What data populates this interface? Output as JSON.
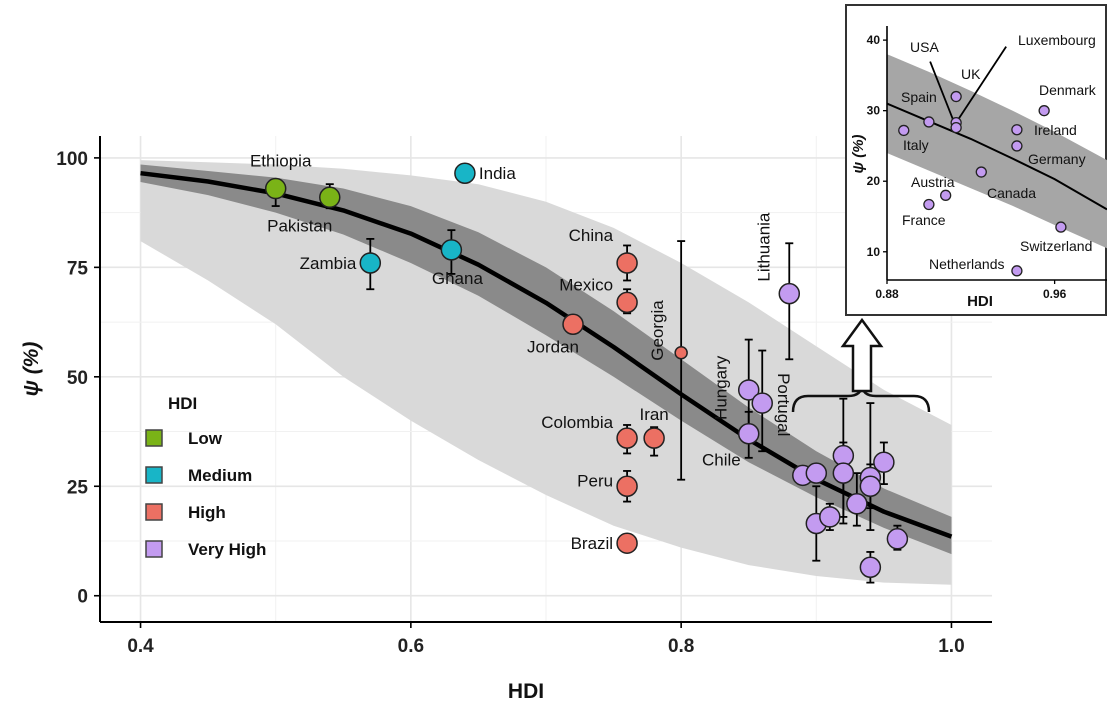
{
  "chart_data": [
    {
      "type": "scatter",
      "xlabel": "HDI",
      "ylabel": "ψ (%)",
      "xlim": [
        0.37,
        1.03
      ],
      "ylim": [
        -6,
        105
      ],
      "xticks": [
        0.4,
        0.6,
        0.8,
        1.0
      ],
      "xtick_labels": [
        "0.4",
        "0.6",
        "0.8",
        "1.0"
      ],
      "yticks": [
        0,
        25,
        50,
        75,
        100
      ],
      "ytick_labels": [
        "0",
        "25",
        "50",
        "75",
        "100"
      ],
      "grid": true,
      "legend": {
        "title": "HDI",
        "placement": "left-middle",
        "entries": [
          {
            "label": "Low",
            "color": "#7ab317"
          },
          {
            "label": "Medium",
            "color": "#18b5c7"
          },
          {
            "label": "High",
            "color": "#ec7063"
          },
          {
            "label": "Very High",
            "color": "#c39bf0"
          }
        ]
      },
      "fit_curve": {
        "x": [
          0.4,
          0.45,
          0.5,
          0.55,
          0.6,
          0.65,
          0.7,
          0.75,
          0.8,
          0.85,
          0.9,
          0.95,
          1.0
        ],
        "y": [
          96.5,
          94.6,
          91.9,
          88.0,
          82.7,
          75.6,
          66.9,
          56.8,
          46.0,
          35.7,
          26.6,
          19.2,
          13.5
        ],
        "band_inner_low": [
          94.5,
          91.5,
          87.5,
          82.5,
          76.0,
          68.5,
          59.5,
          50.0,
          40.0,
          30.5,
          22.5,
          15.5,
          9.5
        ],
        "band_inner_high": [
          98.5,
          97.0,
          95.5,
          93.0,
          89.0,
          83.0,
          75.0,
          65.0,
          54.0,
          43.0,
          33.0,
          24.5,
          18.0
        ],
        "band_outer_low": [
          81.0,
          72.0,
          62.0,
          50.0,
          40.0,
          31.0,
          23.0,
          16.0,
          11.0,
          7.0,
          4.5,
          3.0,
          2.5
        ],
        "band_outer_high": [
          99.5,
          99.0,
          98.5,
          97.5,
          96.0,
          94.0,
          90.0,
          84.0,
          76.0,
          67.0,
          57.0,
          47.0,
          39.0
        ]
      },
      "points": [
        {
          "label": "Ethiopia",
          "x": 0.5,
          "y": 93,
          "err": [
            89,
            95
          ],
          "group": "Low"
        },
        {
          "label": "Pakistan",
          "x": 0.54,
          "y": 91,
          "err": [
            88.5,
            94
          ],
          "group": "Low"
        },
        {
          "label": "Zambia",
          "x": 0.57,
          "y": 76,
          "err": [
            70,
            81.5
          ],
          "group": "Medium"
        },
        {
          "label": "Ghana",
          "x": 0.63,
          "y": 79,
          "err": [
            73.5,
            83.5
          ],
          "group": "Medium"
        },
        {
          "label": "India",
          "x": 0.64,
          "y": 96.5,
          "err": [
            95.5,
            97.5
          ],
          "group": "Medium"
        },
        {
          "label": "Jordan",
          "x": 0.72,
          "y": 62,
          "err": null,
          "group": "High"
        },
        {
          "label": "China",
          "x": 0.76,
          "y": 76,
          "err": [
            72,
            80
          ],
          "group": "High"
        },
        {
          "label": "Mexico",
          "x": 0.76,
          "y": 67,
          "err": [
            64.5,
            70
          ],
          "group": "High"
        },
        {
          "label": "Colombia",
          "x": 0.76,
          "y": 36,
          "err": [
            32.5,
            39
          ],
          "group": "High"
        },
        {
          "label": "Peru",
          "x": 0.76,
          "y": 25,
          "err": [
            21.5,
            28.5
          ],
          "group": "High"
        },
        {
          "label": "Brazil",
          "x": 0.76,
          "y": 12,
          "err": [
            10.5,
            14
          ],
          "group": "High"
        },
        {
          "label": "Iran",
          "x": 0.78,
          "y": 36,
          "err": [
            32,
            38.5
          ],
          "group": "High"
        },
        {
          "label": "Georgia",
          "x": 0.8,
          "y": 55.5,
          "err": [
            26.5,
            81
          ],
          "group": "High"
        },
        {
          "label": "Hungary",
          "x": 0.85,
          "y": 47,
          "err": [
            36,
            58.5
          ],
          "group": "Very High"
        },
        {
          "label": "Portugal",
          "x": 0.86,
          "y": 44,
          "err": [
            33,
            56
          ],
          "group": "Very High"
        },
        {
          "label": "Chile",
          "x": 0.85,
          "y": 37,
          "err": [
            31.5,
            42
          ],
          "group": "Very High"
        },
        {
          "label": "Lithuania",
          "x": 0.88,
          "y": 69,
          "err": [
            54,
            80.5
          ],
          "group": "Very High"
        },
        {
          "label": "",
          "x": 0.89,
          "y": 27.5,
          "err": null,
          "group": "Very High"
        },
        {
          "label": "",
          "x": 0.9,
          "y": 28,
          "err": [
            26,
            30
          ],
          "group": "Very High"
        },
        {
          "label": "",
          "x": 0.9,
          "y": 16.5,
          "err": [
            8,
            25
          ],
          "group": "Very High"
        },
        {
          "label": "",
          "x": 0.91,
          "y": 18,
          "err": [
            15,
            21
          ],
          "group": "Very High"
        },
        {
          "label": "",
          "x": 0.92,
          "y": 32,
          "err": [
            18,
            45
          ],
          "group": "Very High"
        },
        {
          "label": "",
          "x": 0.92,
          "y": 28,
          "err": [
            16.5,
            35
          ],
          "group": "Very High"
        },
        {
          "label": "",
          "x": 0.93,
          "y": 21,
          "err": [
            16,
            28
          ],
          "group": "Very High"
        },
        {
          "label": "",
          "x": 0.94,
          "y": 27,
          "err": [
            20,
            30
          ],
          "group": "Very High"
        },
        {
          "label": "",
          "x": 0.94,
          "y": 25,
          "err": [
            15,
            44
          ],
          "group": "Very High"
        },
        {
          "label": "",
          "x": 0.95,
          "y": 30.5,
          "err": [
            25.5,
            35
          ],
          "group": "Very High"
        },
        {
          "label": "",
          "x": 0.94,
          "y": 6.5,
          "err": [
            3,
            10
          ],
          "group": "Very High"
        },
        {
          "label": "",
          "x": 0.96,
          "y": 13,
          "err": [
            10.5,
            16
          ],
          "group": "Very High"
        }
      ]
    },
    {
      "type": "scatter",
      "xlabel": "HDI",
      "ylabel": "ψ (%)",
      "xlim": [
        0.88,
        0.985
      ],
      "ylim": [
        6,
        42
      ],
      "xticks": [
        0.88,
        0.96
      ],
      "xtick_labels": [
        "0.88",
        "0.96"
      ],
      "yticks": [
        10,
        20,
        30,
        40
      ],
      "ytick_labels": [
        "10",
        "20",
        "30",
        "40"
      ],
      "fit_curve": {
        "x": [
          0.88,
          0.9,
          0.92,
          0.94,
          0.96,
          0.985
        ],
        "y": [
          31,
          28.5,
          26,
          23.2,
          20.3,
          16
        ],
        "band_low": [
          24,
          21.5,
          19,
          16.5,
          13.8,
          10.5
        ],
        "band_high": [
          38,
          35.5,
          32.8,
          30,
          27,
          23
        ]
      },
      "points": [
        {
          "label": "Luxembourg",
          "x": 0.913,
          "y": 28.3
        },
        {
          "label": "USA",
          "x": 0.913,
          "y": 27.6
        },
        {
          "label": "UK",
          "x": 0.913,
          "y": 32
        },
        {
          "label": "Denmark",
          "x": 0.955,
          "y": 30
        },
        {
          "label": "Spain",
          "x": 0.9,
          "y": 28.4
        },
        {
          "label": "Ireland",
          "x": 0.942,
          "y": 27.3
        },
        {
          "label": "Italy",
          "x": 0.888,
          "y": 27.2
        },
        {
          "label": "Germany",
          "x": 0.942,
          "y": 25
        },
        {
          "label": "Canada",
          "x": 0.925,
          "y": 21.3
        },
        {
          "label": "Austria",
          "x": 0.908,
          "y": 18
        },
        {
          "label": "France",
          "x": 0.9,
          "y": 16.7
        },
        {
          "label": "Switzerland",
          "x": 0.963,
          "y": 13.5
        },
        {
          "label": "Netherlands",
          "x": 0.942,
          "y": 7.3
        }
      ]
    }
  ]
}
